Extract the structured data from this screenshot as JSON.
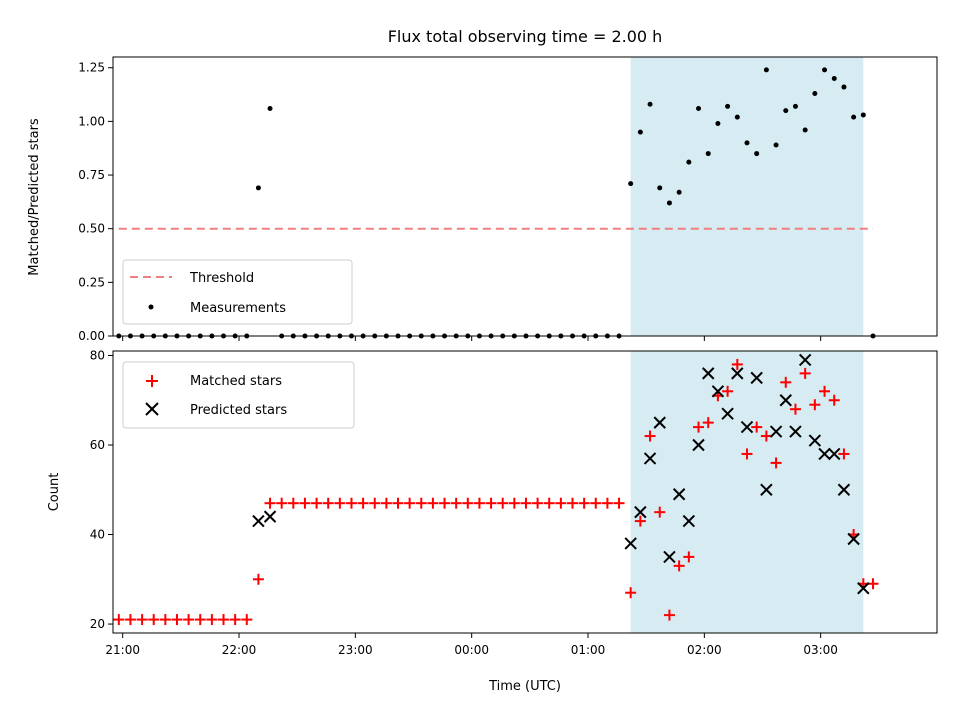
{
  "chart_data": [
    {
      "type": "scatter",
      "title": "Flux total observing time = 2.00 h",
      "xlabel": "",
      "ylabel": "Matched/Predicted stars",
      "xlim": [
        "20:55",
        "04:00"
      ],
      "ylim": [
        0,
        1.3
      ],
      "yticks": [
        "0.00",
        "0.25",
        "0.50",
        "0.75",
        "1.00",
        "1.25"
      ],
      "shaded_span": [
        "01:22",
        "03:22"
      ],
      "threshold": 0.5,
      "legend": {
        "position": "lower-left",
        "entries": [
          "Threshold",
          "Measurements"
        ]
      },
      "series": [
        {
          "name": "Measurements",
          "marker": "dot",
          "color": "#000000",
          "points": [
            [
              "20:58",
              0
            ],
            [
              "21:04",
              0
            ],
            [
              "21:10",
              0
            ],
            [
              "21:16",
              0
            ],
            [
              "21:22",
              0
            ],
            [
              "21:28",
              0
            ],
            [
              "21:34",
              0
            ],
            [
              "21:40",
              0
            ],
            [
              "21:46",
              0
            ],
            [
              "21:52",
              0
            ],
            [
              "21:58",
              0
            ],
            [
              "22:04",
              0
            ],
            [
              "22:10",
              0.69
            ],
            [
              "22:16",
              1.06
            ],
            [
              "22:22",
              0
            ],
            [
              "22:28",
              0
            ],
            [
              "22:34",
              0
            ],
            [
              "22:40",
              0
            ],
            [
              "22:46",
              0
            ],
            [
              "22:52",
              0
            ],
            [
              "22:58",
              0
            ],
            [
              "23:04",
              0
            ],
            [
              "23:10",
              0
            ],
            [
              "23:16",
              0
            ],
            [
              "23:22",
              0
            ],
            [
              "23:28",
              0
            ],
            [
              "23:34",
              0
            ],
            [
              "23:40",
              0
            ],
            [
              "23:46",
              0
            ],
            [
              "23:52",
              0
            ],
            [
              "23:58",
              0
            ],
            [
              "00:04",
              0
            ],
            [
              "00:10",
              0
            ],
            [
              "00:16",
              0
            ],
            [
              "00:22",
              0
            ],
            [
              "00:28",
              0
            ],
            [
              "00:34",
              0
            ],
            [
              "00:40",
              0
            ],
            [
              "00:46",
              0
            ],
            [
              "00:52",
              0
            ],
            [
              "00:58",
              0
            ],
            [
              "01:04",
              0
            ],
            [
              "01:10",
              0
            ],
            [
              "01:16",
              0
            ],
            [
              "01:22",
              0.71
            ],
            [
              "01:27",
              0.95
            ],
            [
              "01:32",
              1.08
            ],
            [
              "01:37",
              0.69
            ],
            [
              "01:42",
              0.62
            ],
            [
              "01:47",
              0.67
            ],
            [
              "01:52",
              0.81
            ],
            [
              "01:57",
              1.06
            ],
            [
              "02:02",
              0.85
            ],
            [
              "02:07",
              0.99
            ],
            [
              "02:12",
              1.07
            ],
            [
              "02:17",
              1.02
            ],
            [
              "02:22",
              0.9
            ],
            [
              "02:27",
              0.85
            ],
            [
              "02:32",
              1.24
            ],
            [
              "02:37",
              0.89
            ],
            [
              "02:42",
              1.05
            ],
            [
              "02:47",
              1.07
            ],
            [
              "02:52",
              0.96
            ],
            [
              "02:57",
              1.13
            ],
            [
              "03:02",
              1.24
            ],
            [
              "03:07",
              1.2
            ],
            [
              "03:12",
              1.16
            ],
            [
              "03:17",
              1.02
            ],
            [
              "03:22",
              1.03
            ],
            [
              "03:27",
              0
            ]
          ]
        }
      ]
    },
    {
      "type": "scatter",
      "title": "",
      "xlabel": "Time (UTC)",
      "ylabel": "Count",
      "xlim": [
        "20:55",
        "04:00"
      ],
      "ylim": [
        18,
        81
      ],
      "yticks": [
        "20",
        "40",
        "60",
        "80"
      ],
      "xticks": [
        "21:00",
        "22:00",
        "23:00",
        "00:00",
        "01:00",
        "02:00",
        "03:00"
      ],
      "shaded_span": [
        "01:22",
        "03:22"
      ],
      "legend": {
        "position": "top-left",
        "entries": [
          "Matched stars",
          "Predicted stars"
        ]
      },
      "series": [
        {
          "name": "Matched stars",
          "marker": "plus",
          "color": "#ff0000",
          "points": [
            [
              "20:58",
              21
            ],
            [
              "21:04",
              21
            ],
            [
              "21:10",
              21
            ],
            [
              "21:16",
              21
            ],
            [
              "21:22",
              21
            ],
            [
              "21:28",
              21
            ],
            [
              "21:34",
              21
            ],
            [
              "21:40",
              21
            ],
            [
              "21:46",
              21
            ],
            [
              "21:52",
              21
            ],
            [
              "21:58",
              21
            ],
            [
              "22:04",
              21
            ],
            [
              "22:10",
              30
            ],
            [
              "22:16",
              47
            ],
            [
              "22:22",
              47
            ],
            [
              "22:28",
              47
            ],
            [
              "22:34",
              47
            ],
            [
              "22:40",
              47
            ],
            [
              "22:46",
              47
            ],
            [
              "22:52",
              47
            ],
            [
              "22:58",
              47
            ],
            [
              "23:04",
              47
            ],
            [
              "23:10",
              47
            ],
            [
              "23:16",
              47
            ],
            [
              "23:22",
              47
            ],
            [
              "23:28",
              47
            ],
            [
              "23:34",
              47
            ],
            [
              "23:40",
              47
            ],
            [
              "23:46",
              47
            ],
            [
              "23:52",
              47
            ],
            [
              "23:58",
              47
            ],
            [
              "00:04",
              47
            ],
            [
              "00:10",
              47
            ],
            [
              "00:16",
              47
            ],
            [
              "00:22",
              47
            ],
            [
              "00:28",
              47
            ],
            [
              "00:34",
              47
            ],
            [
              "00:40",
              47
            ],
            [
              "00:46",
              47
            ],
            [
              "00:52",
              47
            ],
            [
              "00:58",
              47
            ],
            [
              "01:04",
              47
            ],
            [
              "01:10",
              47
            ],
            [
              "01:16",
              47
            ],
            [
              "01:22",
              27
            ],
            [
              "01:27",
              43
            ],
            [
              "01:32",
              62
            ],
            [
              "01:37",
              45
            ],
            [
              "01:42",
              22
            ],
            [
              "01:47",
              33
            ],
            [
              "01:52",
              35
            ],
            [
              "01:57",
              64
            ],
            [
              "02:02",
              65
            ],
            [
              "02:07",
              71
            ],
            [
              "02:12",
              72
            ],
            [
              "02:17",
              78
            ],
            [
              "02:22",
              58
            ],
            [
              "02:27",
              64
            ],
            [
              "02:32",
              62
            ],
            [
              "02:37",
              56
            ],
            [
              "02:42",
              74
            ],
            [
              "02:47",
              68
            ],
            [
              "02:52",
              76
            ],
            [
              "02:57",
              69
            ],
            [
              "03:02",
              72
            ],
            [
              "03:07",
              70
            ],
            [
              "03:12",
              58
            ],
            [
              "03:17",
              40
            ],
            [
              "03:22",
              29
            ],
            [
              "03:27",
              29
            ]
          ]
        },
        {
          "name": "Predicted stars",
          "marker": "x",
          "color": "#000000",
          "points": [
            [
              "22:10",
              43
            ],
            [
              "22:16",
              44
            ],
            [
              "01:22",
              38
            ],
            [
              "01:27",
              45
            ],
            [
              "01:32",
              57
            ],
            [
              "01:37",
              65
            ],
            [
              "01:42",
              35
            ],
            [
              "01:47",
              49
            ],
            [
              "01:52",
              43
            ],
            [
              "01:57",
              60
            ],
            [
              "02:02",
              76
            ],
            [
              "02:07",
              72
            ],
            [
              "02:12",
              67
            ],
            [
              "02:17",
              76
            ],
            [
              "02:22",
              64
            ],
            [
              "02:27",
              75
            ],
            [
              "02:32",
              50
            ],
            [
              "02:37",
              63
            ],
            [
              "02:42",
              70
            ],
            [
              "02:47",
              63
            ],
            [
              "02:52",
              79
            ],
            [
              "02:57",
              61
            ],
            [
              "03:02",
              58
            ],
            [
              "03:07",
              58
            ],
            [
              "03:12",
              50
            ],
            [
              "03:17",
              39
            ],
            [
              "03:22",
              28
            ]
          ]
        }
      ]
    }
  ],
  "colors": {
    "threshold": "#f08080",
    "shade": "#add8e6",
    "matched": "#ff0000",
    "predicted": "#000000",
    "measurement": "#000000"
  }
}
